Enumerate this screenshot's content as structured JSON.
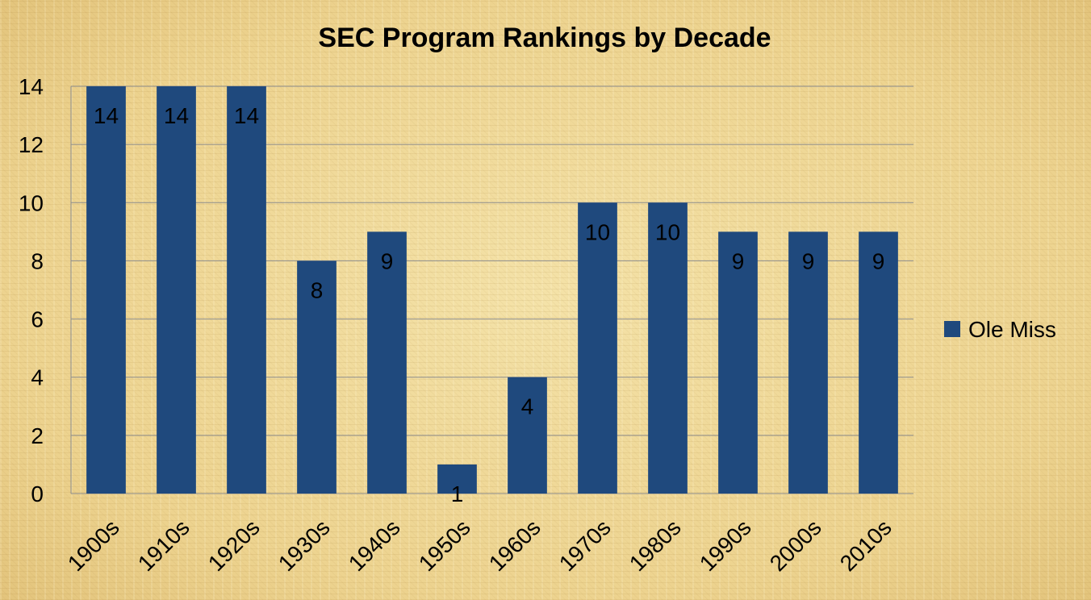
{
  "chart_data": {
    "type": "bar",
    "title": "SEC Program Rankings by Decade",
    "xlabel": "",
    "ylabel": "",
    "categories": [
      "1900s",
      "1910s",
      "1920s",
      "1930s",
      "1940s",
      "1950s",
      "1960s",
      "1970s",
      "1980s",
      "1990s",
      "2000s",
      "2010s"
    ],
    "series": [
      {
        "name": "Ole Miss",
        "values": [
          14,
          14,
          14,
          8,
          9,
          1,
          4,
          10,
          10,
          9,
          9,
          9
        ]
      }
    ],
    "ylim": [
      0,
      14
    ],
    "yticks": [
      0,
      2,
      4,
      6,
      8,
      10,
      12,
      14
    ],
    "grid": true,
    "legend_position": "right",
    "data_labels": true,
    "colors": {
      "bar": "#1f497d"
    }
  }
}
